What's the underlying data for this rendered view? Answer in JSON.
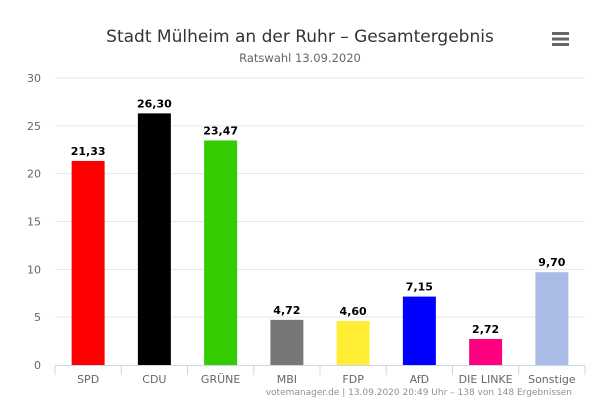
{
  "chart_data": {
    "type": "bar",
    "title": "Stadt Mülheim an der Ruhr – Gesamtergebnis",
    "subtitle": "Ratswahl 13.09.2020",
    "categories": [
      "SPD",
      "CDU",
      "GRÜNE",
      "MBI",
      "FDP",
      "AfD",
      "DIE LINKE",
      "Sonstige"
    ],
    "values": [
      21.33,
      26.3,
      23.47,
      4.72,
      4.6,
      7.15,
      2.72,
      9.7
    ],
    "value_labels": [
      "21,33",
      "26,30",
      "23,47",
      "4,72",
      "4,60",
      "7,15",
      "2,72",
      "9,70"
    ],
    "colors": [
      "#ff0000",
      "#000000",
      "#33cc00",
      "#777777",
      "#ffee33",
      "#0000ff",
      "#ff0080",
      "#aabbe6"
    ],
    "ylim": [
      0,
      30
    ],
    "yticks": [
      0,
      5,
      10,
      15,
      20,
      25,
      30
    ],
    "xlabel": "",
    "ylabel": "",
    "grid": true,
    "legend": "none"
  },
  "menu_icon": "hamburger-menu-icon",
  "credits": "votemanager.de | 13.09.2020 20:49 Uhr – 138 von 148 Ergebnissen"
}
